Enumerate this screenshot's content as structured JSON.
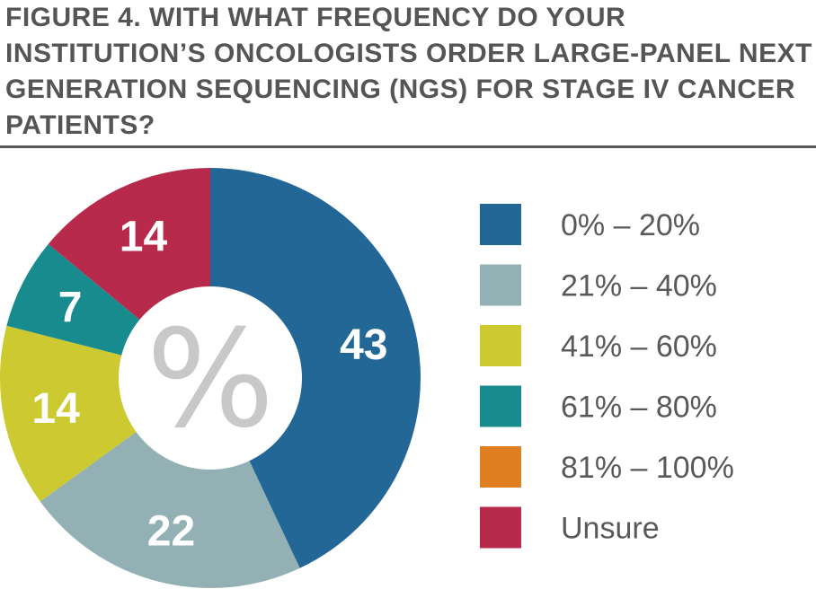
{
  "title": "FIGURE 4. WITH WHAT FREQUENCY DO YOUR INSTITUTION’S ONCOLOGISTS ORDER LARGE-PANEL NEXT GENERATION SEQUENCING (NGS) FOR STAGE IV CANCER PATIENTS?",
  "center_symbol": "%",
  "chart_data": {
    "type": "pie",
    "title": "FIGURE 4. WITH WHAT FREQUENCY DO YOUR INSTITUTION’S ONCOLOGISTS ORDER LARGE-PANEL NEXT GENERATION SEQUENCING (NGS) FOR STAGE IV CANCER PATIENTS?",
    "donut": true,
    "legend_placement": "right",
    "categories": [
      "0% – 20%",
      "21% – 40%",
      "41% – 60%",
      "61% – 80%",
      "81% – 100%",
      "Unsure"
    ],
    "values": [
      43,
      22,
      14,
      7,
      0,
      14
    ],
    "data_labels": [
      "43",
      "22",
      "14",
      "7",
      "",
      "14"
    ],
    "colors": [
      "#236797",
      "#93b1b4",
      "#cdc931",
      "#178b8d",
      "#df7f22",
      "#b82a4c"
    ]
  }
}
